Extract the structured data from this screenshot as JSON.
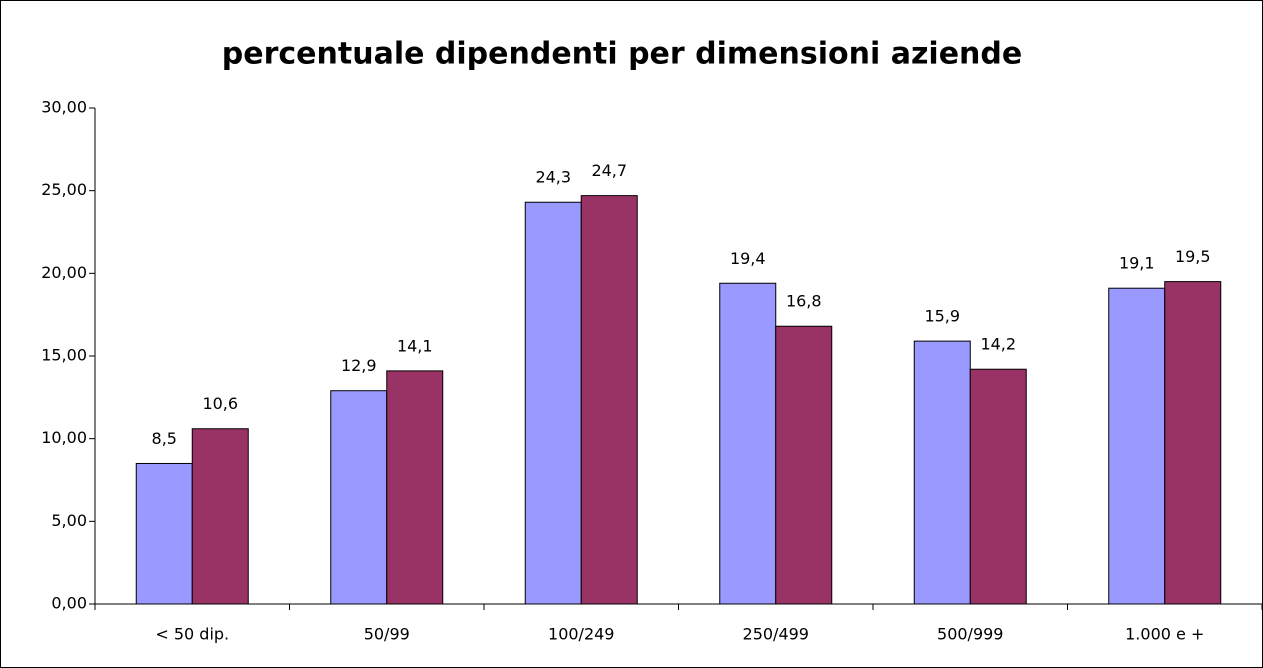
{
  "chart_data": {
    "type": "bar",
    "title": "percentuale dipendenti per dimensioni aziende",
    "categories": [
      "< 50 dip.",
      "50/99",
      "100/249",
      "250/499",
      "500/999",
      "1.000 e +"
    ],
    "series": [
      {
        "color": "#9999ff",
        "values": [
          8.5,
          12.9,
          24.3,
          19.4,
          15.9,
          19.1
        ],
        "value_labels": [
          "8,5",
          "12,9",
          "24,3",
          "19,4",
          "15,9",
          "19,1"
        ]
      },
      {
        "color": "#993366",
        "values": [
          10.6,
          14.1,
          24.7,
          16.8,
          14.2,
          19.5
        ],
        "value_labels": [
          "10,6",
          "14,1",
          "24,7",
          "16,8",
          "14,2",
          "19,5"
        ]
      }
    ],
    "ylim": [
      0,
      30
    ],
    "yticks": [
      {
        "value": 0,
        "label": "0,00"
      },
      {
        "value": 5,
        "label": "5,00"
      },
      {
        "value": 10,
        "label": "10,00"
      },
      {
        "value": 15,
        "label": "15,00"
      },
      {
        "value": 20,
        "label": "20,00"
      },
      {
        "value": 25,
        "label": "25,00"
      },
      {
        "value": 30,
        "label": "30,00"
      }
    ],
    "grid": false
  }
}
